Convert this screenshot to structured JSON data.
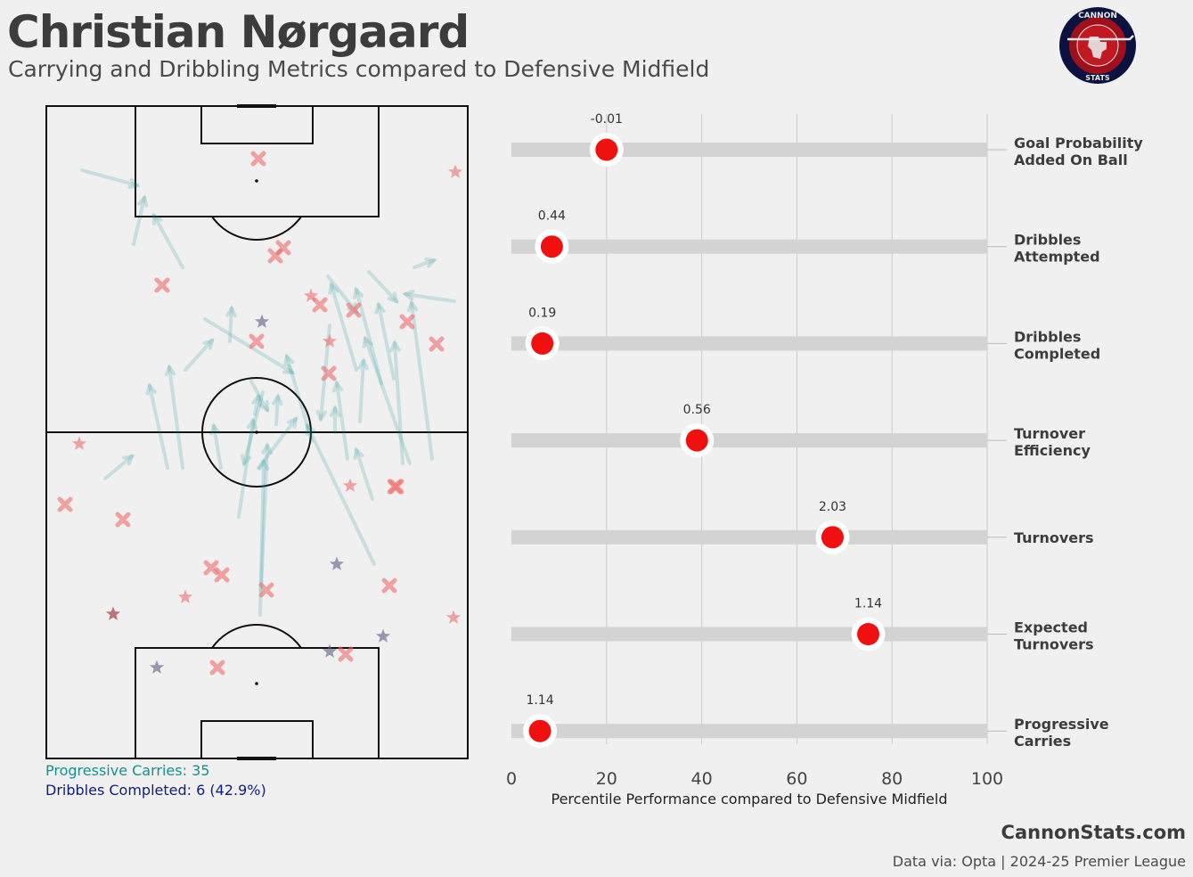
{
  "header": {
    "title": "Christian Nørgaard",
    "subtitle": "Carrying and Dribbling Metrics compared to Defensive Midfield"
  },
  "logo": {
    "top_text": "CANNON",
    "bottom_text": "STATS"
  },
  "pitch_legend": {
    "carries": "Progressive Carries: 35",
    "dribbles": "Dribbles Completed: 6 (42.9%)"
  },
  "footer": {
    "site": "CannonStats.com",
    "source": "Data via: Opta | 2024-25 Premier League"
  },
  "colors": {
    "background": "#f0f0f0",
    "dot": "#f01010",
    "bar": "#d3d3d3",
    "carry": "#178f8f",
    "dribble_text": "#101d7c",
    "turnover": "#f06a6a"
  },
  "chart_data": {
    "type": "bar",
    "orientation": "horizontal",
    "xlabel": "Percentile Performance compared to Defensive Midfield",
    "xlim": [
      0,
      100
    ],
    "xticks": [
      0,
      20,
      40,
      60,
      80,
      100
    ],
    "grid": true,
    "categories": [
      [
        "Goal Probability",
        "Added On Ball"
      ],
      [
        "Dribbles",
        "Attempted"
      ],
      [
        "Dribbles",
        "Completed"
      ],
      [
        "Turnover",
        "Efficiency"
      ],
      [
        "Turnovers"
      ],
      [
        "Expected",
        "Turnovers"
      ],
      [
        "Progressive",
        "Carries"
      ]
    ],
    "percentiles": [
      20,
      8.5,
      6.5,
      39,
      67.5,
      75,
      6
    ],
    "value_labels": [
      "-0.01",
      "0.44",
      "0.19",
      "0.56",
      "2.03",
      "1.14",
      "1.14"
    ]
  }
}
